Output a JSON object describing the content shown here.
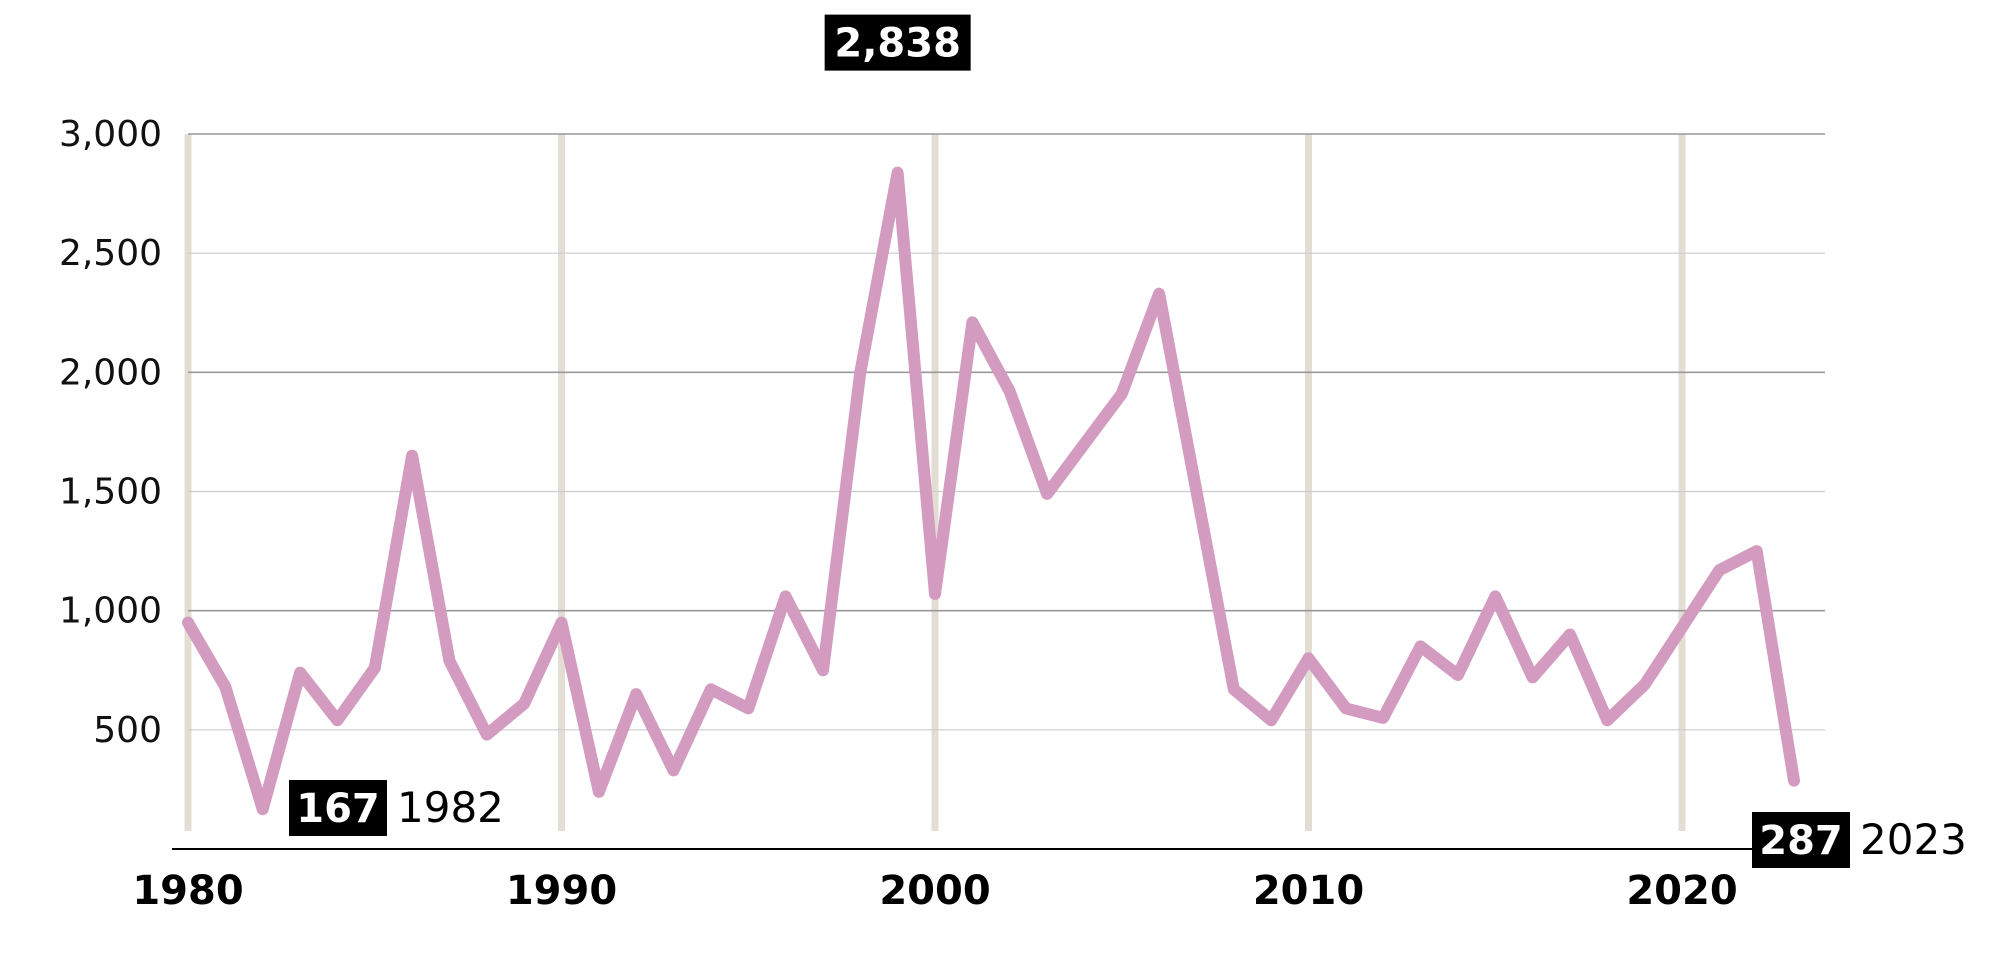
{
  "chart_data": {
    "type": "line",
    "title": "",
    "xlabel": "",
    "ylabel": "",
    "xlim": [
      1980,
      2023
    ],
    "ylim": [
      0,
      3000
    ],
    "y_ticks": [
      500,
      1000,
      1500,
      2000,
      2500,
      3000
    ],
    "y_tick_labels": [
      "500",
      "1,000",
      "1,500",
      "2,000",
      "2,500",
      "3,000"
    ],
    "x_ticks": [
      1980,
      1990,
      2000,
      2010,
      2020
    ],
    "x_tick_labels": [
      "1980",
      "1990",
      "2000",
      "2010",
      "2020"
    ],
    "grid": true,
    "line_color": "#d39bbf",
    "grid_major_color": "#999999",
    "grid_minor_color": "#cccccc",
    "vertical_band_color": "#e4ddd3",
    "series": [
      {
        "x": [
          1980,
          1981,
          1982,
          1983,
          1984,
          1985,
          1986,
          1987,
          1988,
          1989,
          1990,
          1991,
          1992,
          1993,
          1994,
          1995,
          1996,
          1997,
          1998,
          1999,
          2000,
          2001,
          2002,
          2003,
          2004,
          2005,
          2006,
          2007,
          2008,
          2009,
          2010,
          2011,
          2012,
          2013,
          2014,
          2015,
          2016,
          2017,
          2018,
          2019,
          2020,
          2021,
          2022,
          2023
        ],
        "values": [
          950,
          680,
          167,
          740,
          540,
          760,
          1650,
          790,
          480,
          610,
          950,
          240,
          650,
          330,
          670,
          590,
          1060,
          750,
          2000,
          2838,
          1070,
          2210,
          1920,
          1490,
          1700,
          1910,
          2330,
          1500,
          670,
          540,
          800,
          590,
          550,
          850,
          730,
          1060,
          720,
          900,
          540,
          690,
          930,
          1170,
          1250,
          287
        ]
      }
    ],
    "annotations": [
      {
        "x": 1982,
        "y": 167,
        "value": "167",
        "year": "1982",
        "placement": "below-right"
      },
      {
        "x": 1999,
        "y": 2838,
        "value": "2,838",
        "year": "1999",
        "placement": "above"
      },
      {
        "x": 2023,
        "y": 287,
        "value": "287",
        "year": "2023",
        "placement": "below"
      }
    ]
  }
}
